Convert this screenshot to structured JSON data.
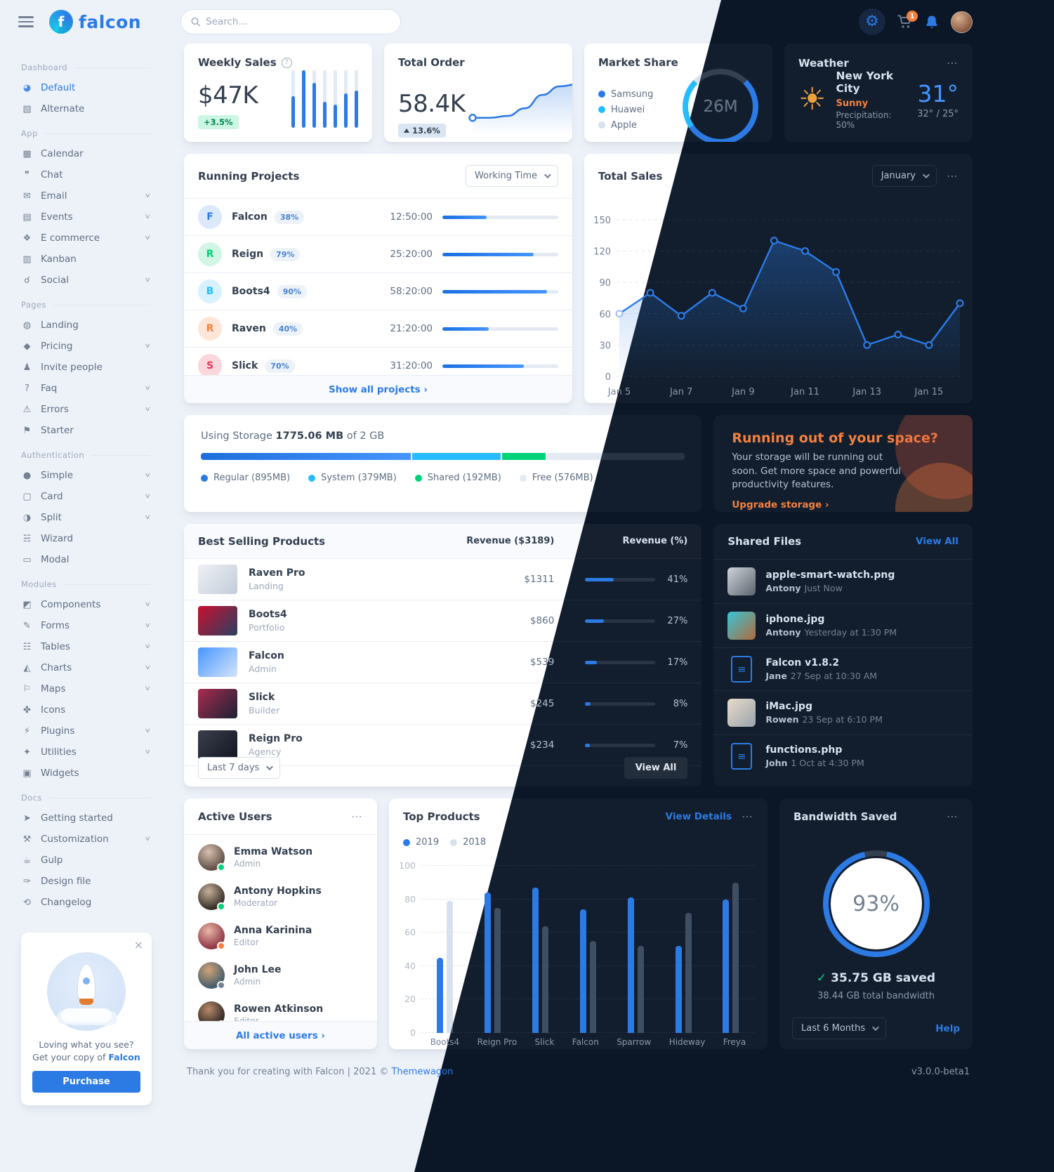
{
  "icons": {
    "more": "⋯",
    "info": "?",
    "chevron_down": "∨",
    "close": "×",
    "gear": "⚙",
    "sun": "☀",
    "check": "✓"
  },
  "header": {
    "search_placeholder": "Search...",
    "cart_badge": "1"
  },
  "brand": {
    "name": "falcon"
  },
  "sidebar": {
    "sections": [
      {
        "label": "Dashboard",
        "items": [
          {
            "icon": "pie-chart-icon",
            "glyph": "◕",
            "label": "Default",
            "active": true
          },
          {
            "icon": "chart-area-icon",
            "glyph": "▧",
            "label": "Alternate"
          }
        ]
      },
      {
        "label": "App",
        "items": [
          {
            "icon": "calendar-icon",
            "glyph": "▦",
            "label": "Calendar"
          },
          {
            "icon": "chat-icon",
            "glyph": "❞",
            "label": "Chat"
          },
          {
            "icon": "envelope-icon",
            "glyph": "✉",
            "label": "Email",
            "chevron": true
          },
          {
            "icon": "calendar-day-icon",
            "glyph": "▤",
            "label": "Events",
            "chevron": true
          },
          {
            "icon": "cart-icon",
            "glyph": "❖",
            "label": "E commerce",
            "chevron": true
          },
          {
            "icon": "kanban-icon",
            "glyph": "▥",
            "label": "Kanban"
          },
          {
            "icon": "share-nodes-icon",
            "glyph": "☌",
            "label": "Social",
            "chevron": true
          }
        ]
      },
      {
        "label": "Pages",
        "items": [
          {
            "icon": "globe-icon",
            "glyph": "◍",
            "label": "Landing"
          },
          {
            "icon": "tags-icon",
            "glyph": "◆",
            "label": "Pricing",
            "chevron": true
          },
          {
            "icon": "user-plus-icon",
            "glyph": "♟",
            "label": "Invite people"
          },
          {
            "icon": "question-circle-icon",
            "glyph": "?",
            "label": "Faq",
            "chevron": true
          },
          {
            "icon": "warning-icon",
            "glyph": "⚠",
            "label": "Errors",
            "chevron": true
          },
          {
            "icon": "flag-icon",
            "glyph": "⚑",
            "label": "Starter"
          }
        ]
      },
      {
        "label": "Authentication",
        "items": [
          {
            "icon": "lock-icon",
            "glyph": "●",
            "label": "Simple",
            "chevron": true
          },
          {
            "icon": "card-icon",
            "glyph": "▢",
            "label": "Card",
            "chevron": true
          },
          {
            "icon": "split-icon",
            "glyph": "◑",
            "label": "Split",
            "chevron": true
          },
          {
            "icon": "layers-icon",
            "glyph": "☵",
            "label": "Wizard"
          },
          {
            "icon": "window-icon",
            "glyph": "▭",
            "label": "Modal"
          }
        ]
      },
      {
        "label": "Modules",
        "items": [
          {
            "icon": "puzzle-icon",
            "glyph": "◩",
            "label": "Components",
            "chevron": true
          },
          {
            "icon": "file-pen-icon",
            "glyph": "✎",
            "label": "Forms",
            "chevron": true
          },
          {
            "icon": "table-icon",
            "glyph": "☷",
            "label": "Tables",
            "chevron": true
          },
          {
            "icon": "chart-line-icon",
            "glyph": "◭",
            "label": "Charts",
            "chevron": true
          },
          {
            "icon": "map-icon",
            "glyph": "⚐",
            "label": "Maps",
            "chevron": true
          },
          {
            "icon": "shapes-icon",
            "glyph": "✤",
            "label": "Icons"
          },
          {
            "icon": "plug-icon",
            "glyph": "⚡",
            "label": "Plugins",
            "chevron": true
          },
          {
            "icon": "fire-icon",
            "glyph": "✦",
            "label": "Utilities",
            "chevron": true
          },
          {
            "icon": "widgets-icon",
            "glyph": "▣",
            "label": "Widgets"
          }
        ]
      },
      {
        "label": "Docs",
        "items": [
          {
            "icon": "rocket-icon",
            "glyph": "➤",
            "label": "Getting started"
          },
          {
            "icon": "wrench-icon",
            "glyph": "⚒",
            "label": "Customization",
            "chevron": true
          },
          {
            "icon": "gulp-icon",
            "glyph": "☕",
            "label": "Gulp"
          },
          {
            "icon": "palette-icon",
            "glyph": "✑",
            "label": "Design file"
          },
          {
            "icon": "code-branch-icon",
            "glyph": "⟲",
            "label": "Changelog"
          }
        ]
      }
    ],
    "promo": {
      "question": "Loving what you see?",
      "line2": "Get your copy of",
      "brand_link": "Falcon",
      "button": "Purchase"
    }
  },
  "cards": {
    "weekly_sales": {
      "title": "Weekly Sales",
      "value": "$47K",
      "badge": "+3.5%"
    },
    "total_order": {
      "title": "Total Order",
      "value": "58.4K",
      "badge": "13.6%"
    },
    "market_share": {
      "title": "Market Share",
      "center": "26M"
    },
    "weather": {
      "title": "Weather",
      "city": "New York City",
      "condition": "Sunny",
      "precipitation": "Precipitation: 50%",
      "temp": "31°",
      "range": "32° / 25°"
    }
  },
  "running_projects": {
    "title": "Running Projects",
    "dropdown": "Working Time",
    "footer_link": "Show all projects ›",
    "rows": [
      {
        "letter": "F",
        "name": "Falcon",
        "badge": "38%",
        "time": "12:50:00",
        "progress": 38,
        "color": "#2c7be5",
        "bg": "#dbe9fb"
      },
      {
        "letter": "R",
        "name": "Reign",
        "badge": "79%",
        "time": "25:20:00",
        "progress": 79,
        "color": "#00d27a",
        "bg": "#d2f5e5"
      },
      {
        "letter": "B",
        "name": "Boots4",
        "badge": "90%",
        "time": "58:20:00",
        "progress": 90,
        "color": "#27bcfd",
        "bg": "#d7f2fe"
      },
      {
        "letter": "R",
        "name": "Raven",
        "badge": "40%",
        "time": "21:20:00",
        "progress": 40,
        "color": "#f5803e",
        "bg": "#fde6d8"
      },
      {
        "letter": "S",
        "name": "Slick",
        "badge": "70%",
        "time": "31:20:00",
        "progress": 70,
        "color": "#e63757",
        "bg": "#fad7dd"
      }
    ]
  },
  "total_sales": {
    "title": "Total Sales",
    "dropdown": "January"
  },
  "storage": {
    "title_prefix": "Using Storage",
    "used": "1775.06 MB",
    "suffix": "of 2 GB",
    "legend": [
      {
        "label": "Regular (895MB)",
        "mb": 895,
        "color": "#2c7be5"
      },
      {
        "label": "System (379MB)",
        "mb": 379,
        "color": "#27bcfd"
      },
      {
        "label": "Shared (192MB)",
        "mb": 192,
        "color": "#00d27a"
      },
      {
        "label": "Free (576MB)",
        "mb": 576,
        "color": "track"
      }
    ],
    "total_mb": 2048
  },
  "space_card": {
    "title": "Running out of your space?",
    "text": "Your storage will be running out soon. Get more space and powerful productivity features.",
    "link": "Upgrade storage ›"
  },
  "best_selling": {
    "title": "Best Selling Products",
    "col_revenue": "Revenue ($3189)",
    "col_percent": "Revenue (%)",
    "dropdown": "Last 7 days",
    "view_all": "View All",
    "rows": [
      {
        "name": "Raven Pro",
        "category": "Landing",
        "revenue": "$1311",
        "percent_label": "41%",
        "percent": 41,
        "thumb": [
          "#eef1f6",
          "#c3ccd8"
        ]
      },
      {
        "name": "Boots4",
        "category": "Portfolio",
        "revenue": "$860",
        "percent_label": "27%",
        "percent": 27,
        "thumb": [
          "#c8102e",
          "#2b3f63"
        ]
      },
      {
        "name": "Falcon",
        "category": "Admin",
        "revenue": "$539",
        "percent_label": "17%",
        "percent": 17,
        "thumb": [
          "#4695ff",
          "#d5e5fa"
        ]
      },
      {
        "name": "Slick",
        "category": "Builder",
        "revenue": "$245",
        "percent_label": "8%",
        "percent": 8,
        "thumb": [
          "#a92b50",
          "#1a2233"
        ]
      },
      {
        "name": "Reign Pro",
        "category": "Agency",
        "revenue": "$234",
        "percent_label": "7%",
        "percent": 7,
        "thumb": [
          "#3a3f4c",
          "#121621"
        ]
      }
    ]
  },
  "shared_files": {
    "title": "Shared Files",
    "view_all": "View All",
    "files": [
      {
        "name": "apple-smart-watch.png",
        "owner": "Antony",
        "time": "Just Now",
        "type": "image",
        "thumb": [
          "#cfd4da",
          "#5d646e"
        ]
      },
      {
        "name": "iphone.jpg",
        "owner": "Antony",
        "time": "Yesterday at 1:30 PM",
        "type": "image",
        "thumb": [
          "#38c5d8",
          "#b06a3a"
        ]
      },
      {
        "name": "Falcon v1.8.2",
        "owner": "Jane",
        "time": "27 Sep at 10:30 AM",
        "type": "zip"
      },
      {
        "name": "iMac.jpg",
        "owner": "Rowen",
        "time": "23 Sep at 6:10 PM",
        "type": "image",
        "thumb": [
          "#e8dccB",
          "#9aa3ad"
        ]
      },
      {
        "name": "functions.php",
        "owner": "John",
        "time": "1 Oct at 4:30 PM",
        "type": "file"
      }
    ]
  },
  "active_users": {
    "title": "Active Users",
    "footer_link": "All active users ›",
    "users": [
      {
        "name": "Emma Watson",
        "role": "Admin",
        "status": "online",
        "avatar": [
          "#d8c0b0",
          "#5a4a42"
        ]
      },
      {
        "name": "Antony Hopkins",
        "role": "Moderator",
        "status": "online",
        "avatar": [
          "#c7b29a",
          "#2e2620"
        ]
      },
      {
        "name": "Anna Karinina",
        "role": "Editor",
        "status": "away",
        "avatar": [
          "#e8b8a8",
          "#8c2f3f"
        ]
      },
      {
        "name": "John Lee",
        "role": "Admin",
        "status": "offline",
        "avatar": [
          "#d2a378",
          "#3c5a6b"
        ]
      },
      {
        "name": "Rowen Atkinson",
        "role": "Editor",
        "status": "offline",
        "avatar": [
          "#b98a6a",
          "#26221f"
        ]
      }
    ]
  },
  "top_products": {
    "title": "Top Products",
    "link": "View Details"
  },
  "bandwidth": {
    "title": "Bandwidth Saved",
    "percent_label": "93%",
    "saved": "35.75 GB saved",
    "total": "38.44 GB total bandwidth",
    "dropdown": "Last 6 Months",
    "help": "Help"
  },
  "footer": {
    "text": "Thank you for creating with Falcon | 2021 © ",
    "brand_link": "Themewagon",
    "version": "v3.0.0-beta1"
  },
  "chart_data": [
    {
      "name": "weekly_sales",
      "type": "bar",
      "title": "Weekly Sales",
      "values": [
        55,
        100,
        78,
        45,
        40,
        60,
        65
      ],
      "ylim": [
        0,
        100
      ],
      "grid": false
    },
    {
      "name": "total_order",
      "type": "line",
      "title": "Total Order",
      "values": [
        18,
        18,
        22,
        38,
        66,
        84,
        88,
        88
      ],
      "ylim": [
        0,
        100
      ],
      "grid": false
    },
    {
      "name": "market_share",
      "type": "pie",
      "title": "Market Share",
      "center_label": "26M",
      "segments": [
        {
          "label": "Samsung",
          "percent": 53,
          "color": "#2c7be5"
        },
        {
          "label": "Huawei",
          "percent": 22,
          "color": "#27bcfd"
        },
        {
          "label": "Apple",
          "percent": 25,
          "color": "track"
        }
      ]
    },
    {
      "name": "total_sales",
      "type": "line",
      "title": "Total Sales",
      "month": "January",
      "x": [
        "Jan 5",
        "Jan 6",
        "Jan 7",
        "Jan 8",
        "Jan 9",
        "Jan 10",
        "Jan 11",
        "Jan 12",
        "Jan 13",
        "Jan 14",
        "Jan 15",
        "Jan 16"
      ],
      "values": [
        60,
        80,
        58,
        80,
        65,
        130,
        120,
        100,
        30,
        40,
        30,
        70
      ],
      "yticks": [
        0,
        30,
        60,
        90,
        120,
        150
      ],
      "xtick_labels": [
        "Jan 5",
        "Jan 7",
        "Jan 9",
        "Jan 11",
        "Jan 13",
        "Jan 15"
      ],
      "ylim": [
        0,
        160
      ],
      "grid": true,
      "legend_position": "none"
    },
    {
      "name": "storage",
      "type": "bar",
      "title": "Using Storage",
      "categories": [
        "Regular",
        "System",
        "Shared",
        "Free"
      ],
      "values_mb": [
        895,
        379,
        192,
        576
      ],
      "total_mb": 2048
    },
    {
      "name": "top_products",
      "type": "bar",
      "title": "Top Products",
      "categories": [
        "Boots4",
        "Reign Pro",
        "Slick",
        "Falcon",
        "Sparrow",
        "Hideway",
        "Freya"
      ],
      "series": [
        {
          "name": "2019",
          "color": "#2c7be5",
          "values": [
            45,
            84,
            87,
            74,
            81,
            52,
            80
          ]
        },
        {
          "name": "2018",
          "color": "bar2018",
          "values": [
            79,
            75,
            64,
            55,
            52,
            72,
            90
          ]
        }
      ],
      "yticks": [
        0,
        20,
        40,
        60,
        80,
        100
      ],
      "ylim": [
        0,
        100
      ],
      "grid": true,
      "legend_position": "top-left"
    },
    {
      "name": "bandwidth_saved",
      "type": "pie",
      "title": "Bandwidth Saved",
      "percent": 93,
      "center_label": "93%"
    }
  ]
}
